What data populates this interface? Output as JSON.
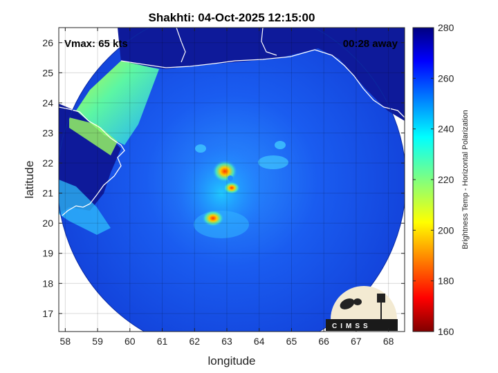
{
  "chart_data": {
    "type": "heatmap",
    "title": "Shakhti: 04-Oct-2025 12:15:00",
    "xlabel": "longitude",
    "ylabel": "latitude",
    "xlim": [
      57.8,
      68.5
    ],
    "ylim": [
      16.4,
      26.5
    ],
    "xticks": [
      58,
      59,
      60,
      61,
      62,
      63,
      64,
      65,
      66,
      67,
      68
    ],
    "yticks": [
      17,
      18,
      19,
      20,
      21,
      22,
      23,
      24,
      25,
      26
    ],
    "grid": true,
    "annotations": {
      "vmax": "Vmax: 65 kts",
      "time_offset": "00:28 away"
    },
    "colorbar": {
      "label": "Brightness Temp - Horizontal Polarization",
      "range": [
        160,
        280
      ],
      "ticks": [
        160,
        180,
        200,
        220,
        240,
        260,
        280
      ],
      "colormap": "jet"
    },
    "features": {
      "storm_center": {
        "lon": 63.0,
        "lat": 21.2
      },
      "swath_center": {
        "lon": 63.2,
        "lat": 21.4
      },
      "cold_cores": [
        {
          "lon": 62.7,
          "lat": 21.8,
          "tb": 185
        },
        {
          "lon": 63.3,
          "lat": 21.0,
          "tb": 190
        },
        {
          "lon": 62.5,
          "lat": 20.2,
          "tb": 195
        }
      ],
      "warm_land_tb": 275,
      "ocean_background_tb": 258
    }
  },
  "logo": {
    "text": "CIMSS"
  }
}
